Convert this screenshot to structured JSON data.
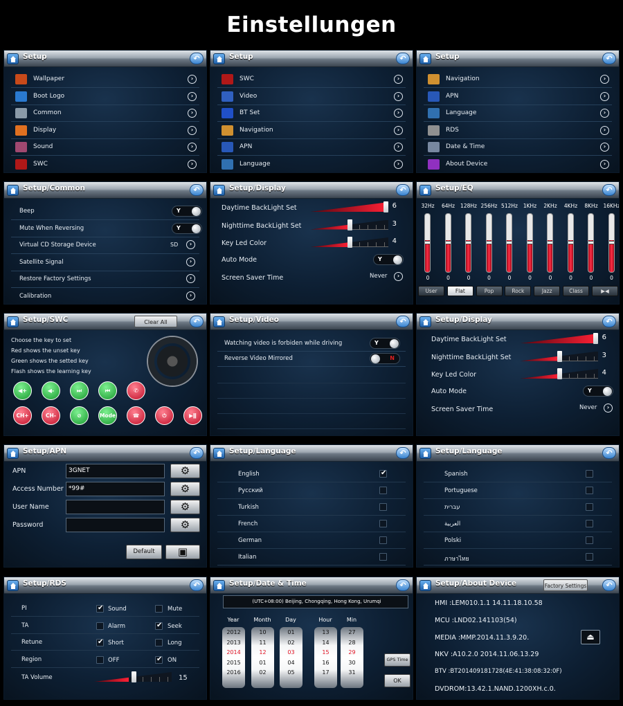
{
  "title": "Einstellungen",
  "p1": {
    "header": "Setup",
    "items": [
      {
        "icon": "wallpaper-icon",
        "label": "Wallpaper",
        "color": "#c84a1a"
      },
      {
        "icon": "boot-logo-icon",
        "label": "Boot Logo",
        "color": "#2a7ad0"
      },
      {
        "icon": "gear-icon",
        "label": "Common",
        "color": "#8a9aa8"
      },
      {
        "icon": "display-icon",
        "label": "Display",
        "color": "#e07020"
      },
      {
        "icon": "sound-icon",
        "label": "Sound",
        "color": "#a04870"
      },
      {
        "icon": "steering-wheel-icon",
        "label": "SWC",
        "color": "#b01818"
      }
    ]
  },
  "p2": {
    "header": "Setup",
    "items": [
      {
        "icon": "steering-wheel-icon",
        "label": "SWC",
        "color": "#b01818"
      },
      {
        "icon": "video-icon",
        "label": "Video",
        "color": "#3060c0"
      },
      {
        "icon": "bluetooth-icon",
        "label": "BT Set",
        "color": "#2050c8"
      },
      {
        "icon": "navigation-icon",
        "label": "Navigation",
        "color": "#d09030"
      },
      {
        "icon": "3g-icon",
        "label": "APN",
        "color": "#2858b8"
      },
      {
        "icon": "language-icon",
        "label": "Language",
        "color": "#3070b0"
      }
    ]
  },
  "p3": {
    "header": "Setup",
    "items": [
      {
        "icon": "navigation-icon",
        "label": "Navigation",
        "color": "#d09030"
      },
      {
        "icon": "3g-icon",
        "label": "APN",
        "color": "#2858b8"
      },
      {
        "icon": "language-icon",
        "label": "Language",
        "color": "#3070b0"
      },
      {
        "icon": "rds-icon",
        "label": "RDS",
        "color": "#909090"
      },
      {
        "icon": "calendar-icon",
        "label": "Date & Time",
        "color": "#7888a0"
      },
      {
        "icon": "info-icon",
        "label": "About Device",
        "color": "#9030c0"
      }
    ]
  },
  "p4": {
    "header": "Setup/Common",
    "beep": "Beep",
    "beep_val": "Y",
    "mute": "Mute When Reversing",
    "mute_val": "Y",
    "vcd": "Virtual CD Storage Device",
    "vcd_val": "SD",
    "sat": "Satellite Signal",
    "restore": "Restore Factory Settings",
    "calib": "Calibration"
  },
  "p5": {
    "header": "Setup/Display",
    "day": "Daytime BackLight Set",
    "day_val": "6",
    "day_level": 1.0,
    "night": "Nighttime BackLight Set",
    "night_val": "3",
    "night_level": 0.5,
    "key": "Key Led Color",
    "key_val": "4",
    "key_level": 0.5,
    "auto": "Auto Mode",
    "auto_val": "Y",
    "saver": "Screen Saver Time",
    "saver_val": "Never"
  },
  "p6": {
    "header": "Setup/EQ",
    "bands": [
      "32Hz",
      "64Hz",
      "128Hz",
      "256Hz",
      "512Hz",
      "1KHz",
      "2KHz",
      "4KHz",
      "8KHz",
      "16KHz"
    ],
    "values": [
      "0",
      "0",
      "0",
      "0",
      "0",
      "0",
      "0",
      "0",
      "0",
      "0"
    ],
    "presets": [
      "User",
      "Flat",
      "Pop",
      "Rock",
      "Jazz",
      "Class"
    ],
    "selected": "Flat"
  },
  "p7": {
    "header": "Setup/SWC",
    "clear": "Clear All",
    "lines": [
      "Choose the key to set",
      "Red shows the unset key",
      "Green shows the setted key",
      "Flash shows the learning key"
    ],
    "row1": [
      {
        "t": "◀+",
        "c": "g"
      },
      {
        "t": "◀-",
        "c": "g"
      },
      {
        "t": "⏭",
        "c": "g"
      },
      {
        "t": "⏮",
        "c": "g"
      },
      {
        "t": "✆",
        "c": "r"
      }
    ],
    "row2": [
      {
        "t": "CH+",
        "c": "r"
      },
      {
        "t": "CH-",
        "c": "r"
      },
      {
        "t": "⊘",
        "c": "g"
      },
      {
        "t": "Mode",
        "c": "g"
      },
      {
        "t": "☎",
        "c": "r"
      },
      {
        "t": "⏻",
        "c": "r"
      },
      {
        "t": "▶ǁ",
        "c": "r"
      }
    ]
  },
  "p8": {
    "header": "Setup/Video",
    "watch": "Watching video is forbiden while driving",
    "watch_val": "Y",
    "mirror": "Reverse Video Mirrored",
    "mirror_val": "N"
  },
  "p9": {
    "header": "Setup/Display",
    "day": "Daytime BackLight Set",
    "day_val": "6",
    "day_level": 1.0,
    "night": "Nighttime BackLight Set",
    "night_val": "3",
    "night_level": 0.5,
    "key": "Key Led Color",
    "key_val": "4",
    "key_level": 0.5,
    "auto": "Auto Mode",
    "auto_val": "Y",
    "saver": "Screen Saver Time",
    "saver_val": "Never"
  },
  "p10": {
    "header": "Setup/APN",
    "apn": "APN",
    "apn_val": "3GNET",
    "acc": "Access Number",
    "acc_val": "*99#",
    "user": "User Name",
    "user_val": "",
    "pass": "Password",
    "pass_val": "",
    "default": "Default"
  },
  "p11": {
    "header": "Setup/Language",
    "langs": [
      {
        "n": "English",
        "on": true
      },
      {
        "n": "Русский",
        "on": false
      },
      {
        "n": "Turkish",
        "on": false
      },
      {
        "n": "French",
        "on": false
      },
      {
        "n": "German",
        "on": false
      },
      {
        "n": "Italian",
        "on": false
      }
    ]
  },
  "p12": {
    "header": "Setup/Language",
    "langs": [
      {
        "n": "Spanish",
        "on": false
      },
      {
        "n": "Portuguese",
        "on": false
      },
      {
        "n": "עברית",
        "on": false
      },
      {
        "n": "العربية",
        "on": false
      },
      {
        "n": "Polski",
        "on": false
      },
      {
        "n": "ภาษาไทย",
        "on": false
      }
    ]
  },
  "p13": {
    "header": "Setup/RDS",
    "rows": [
      {
        "n": "PI",
        "a": "Sound",
        "a_on": true,
        "b": "Mute",
        "b_on": false
      },
      {
        "n": "TA",
        "a": "Alarm",
        "a_on": false,
        "b": "Seek",
        "b_on": true
      },
      {
        "n": "Retune",
        "a": "Short",
        "a_on": true,
        "b": "Long",
        "b_on": false
      },
      {
        "n": "Region",
        "a": "OFF",
        "a_on": false,
        "b": "ON",
        "b_on": true
      }
    ],
    "vol": "TA Volume",
    "vol_val": "15",
    "vol_level": 0.45
  },
  "p14": {
    "header": "Setup/Date & Time",
    "tz": "(UTC+08:00) Beijing, Chongqing, Hong Kong, Urumqi",
    "labels": [
      "Year",
      "Month",
      "Day",
      "Hour",
      "Min"
    ],
    "year": [
      "2012",
      "2013",
      "2014",
      "2015",
      "2016"
    ],
    "month": [
      "10",
      "11",
      "12",
      "01",
      "02"
    ],
    "day": [
      "01",
      "02",
      "03",
      "04",
      "05"
    ],
    "hour": [
      "13",
      "14",
      "15",
      "16",
      "17"
    ],
    "min": [
      "27",
      "28",
      "29",
      "30",
      "31"
    ],
    "gps": "GPS Time",
    "ok": "OK"
  },
  "p15": {
    "header": "Setup/About Device",
    "factory": "Factory Settings",
    "hmi": "HMI  :LEM010.1.1   14.11.18.10.58",
    "mcu": "MCU :LND02.141103(54)",
    "media": "MEDIA :MMP.2014.11.3.9.20.",
    "nkv": "NKV :A10.2.0 2014.11.06.13.29",
    "btv": "BTV  :BT201409181728(4E:41:38:08:32:0F)",
    "dvd": "DVDROM:13.42.1.NAND.1200XH.c.0."
  }
}
